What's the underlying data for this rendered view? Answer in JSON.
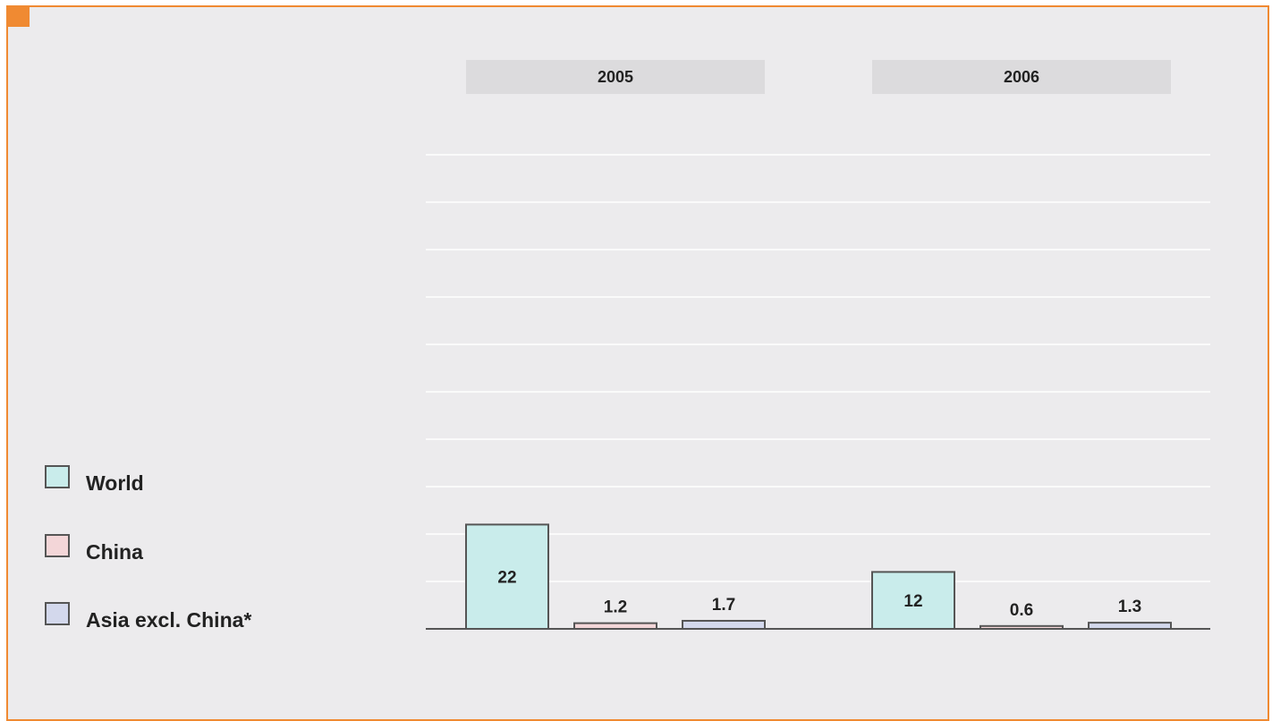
{
  "colors": {
    "frame": "#f08a32",
    "background": "#ecebed",
    "header_band": "#dcdbdd",
    "gridline": "#ffffff",
    "baseline": "#555555",
    "bar_stroke": "#555555",
    "World": "#c9eceb",
    "China": "#f3d6d8",
    "Asia excl. China*": "#d3d8ec"
  },
  "chart_data": {
    "type": "bar",
    "categories": [
      "2005",
      "2006"
    ],
    "series": [
      {
        "name": "World",
        "values": [
          22,
          12
        ]
      },
      {
        "name": "China",
        "values": [
          1.2,
          0.6
        ]
      },
      {
        "name": "Asia excl. China*",
        "values": [
          1.7,
          1.3
        ]
      }
    ],
    "ylim": [
      0,
      100
    ],
    "grid": true,
    "legend_position": "left",
    "title": "",
    "xlabel": "",
    "ylabel": ""
  }
}
